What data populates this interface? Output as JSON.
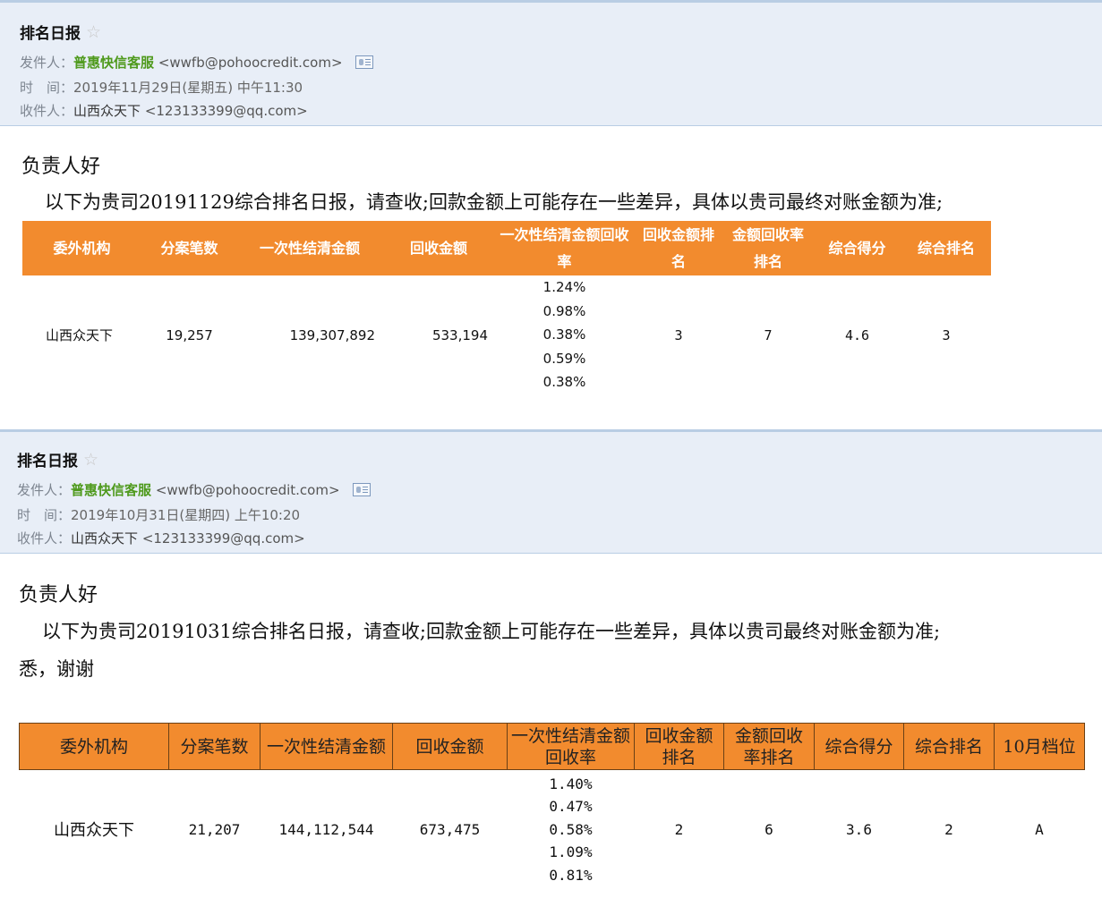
{
  "emails": [
    {
      "subject": "排名日报",
      "sender_label": "发件人：",
      "sender_name": "普惠快信客服",
      "sender_email": "<wwfb@pohoocredit.com>",
      "time_label": "时　间：",
      "time_value": "2019年11月29日(星期五) 中午11:30",
      "recipient_label": "收件人：",
      "recipient_name": "山西众天下",
      "recipient_email": "<123133399@qq.com>",
      "greeting": "负责人好",
      "body": "以下为贵司20191129综合排名日报，请查收;回款金额上可能存在一些差异，具体以贵司最终对账金额为准;",
      "table": {
        "headers": [
          "委外机构",
          "分案笔数",
          "一次性结清金额",
          "回收金额",
          "一次性结清金额回收率",
          "回收金额排名",
          "金额回收率排名",
          "综合得分",
          "综合排名"
        ],
        "row": {
          "org": "山西众天下",
          "count": "19,257",
          "settle_amount": "139,307,892",
          "recovered": "533,194",
          "rates": [
            "1.24%",
            "0.98%",
            "0.38%",
            "0.59%",
            "0.38%"
          ],
          "recovered_rank": "3",
          "rate_rank": "7",
          "score": "4.6",
          "overall_rank": "3"
        }
      }
    },
    {
      "subject": "排名日报",
      "sender_label": "发件人：",
      "sender_name": "普惠快信客服",
      "sender_email": "<wwfb@pohoocredit.com>",
      "time_label": "时　间：",
      "time_value": "2019年10月31日(星期四) 上午10:20",
      "recipient_label": "收件人：",
      "recipient_name": "山西众天下",
      "recipient_email": "<123133399@qq.com>",
      "greeting": "负责人好",
      "body": "以下为贵司20191031综合排名日报，请查收;回款金额上可能存在一些差异，具体以贵司最终对账金额为准;",
      "body_tail": "悉，谢谢",
      "table": {
        "headers": [
          "委外机构",
          "分案笔数",
          "一次性结清金额",
          "回收金额",
          "一次性结清金额回收率",
          "回收金额排名",
          "金额回收率排名",
          "综合得分",
          "综合排名",
          "10月档位"
        ],
        "row": {
          "org": "山西众天下",
          "count": "21,207",
          "settle_amount": "144,112,544",
          "recovered": "673,475",
          "rates": [
            "1.40%",
            "0.47%",
            "0.58%",
            "1.09%",
            "0.81%"
          ],
          "recovered_rank": "2",
          "rate_rank": "6",
          "score": "3.6",
          "overall_rank": "2",
          "tier": "A"
        }
      }
    }
  ],
  "colors": {
    "header_bg": "#e8eef7",
    "header_border": "#b9cde4",
    "table_header": "#f28b2e",
    "sender_green": "#4f9a1d"
  }
}
